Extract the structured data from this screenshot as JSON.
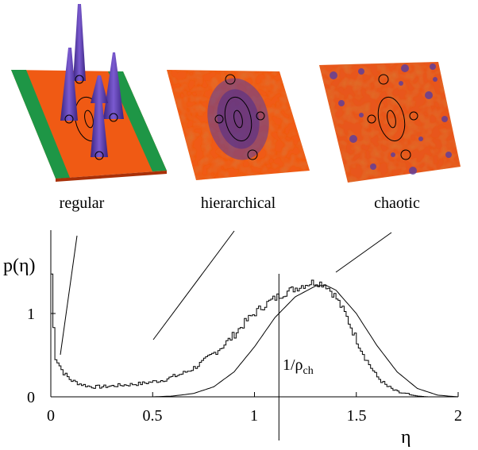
{
  "panels": [
    {
      "label": "regular"
    },
    {
      "label": "hierarchical"
    },
    {
      "label": "chaotic"
    }
  ],
  "colors": {
    "surface": "#f05a14",
    "surface_dark": "#c8360a",
    "peak": "#5a3ca0",
    "border_green": "#1e9646",
    "axis": "#000000"
  },
  "chart_data": {
    "type": "line",
    "ylabel": "p(η)",
    "xlabel": "η",
    "xlim": [
      0,
      2
    ],
    "ylim": [
      0,
      1.5
    ],
    "xticks": [
      0,
      0.5,
      1,
      1.5,
      2
    ],
    "xtick_labels": [
      "0",
      "0.5",
      "1",
      "1.5",
      "2"
    ],
    "yticks": [
      0,
      1
    ],
    "ytick_labels": [
      "0",
      "1"
    ],
    "annotation": {
      "text": "1/ρch",
      "text_main": "1/ρ",
      "text_sub": "ch",
      "x": 1.12
    },
    "series": [
      {
        "style": "step",
        "x": [
          0.0,
          0.02,
          0.04,
          0.06,
          0.08,
          0.1,
          0.15,
          0.2,
          0.25,
          0.3,
          0.35,
          0.4,
          0.45,
          0.5,
          0.55,
          0.6,
          0.65,
          0.7,
          0.75,
          0.8,
          0.85,
          0.9,
          0.95,
          1.0,
          1.05,
          1.1,
          1.15,
          1.2,
          1.25,
          1.3,
          1.35,
          1.4,
          1.45,
          1.5,
          1.55,
          1.6,
          1.65,
          1.7,
          1.75,
          1.8,
          1.85,
          1.9,
          1.95,
          2.0
        ],
        "y": [
          1.8,
          0.5,
          0.4,
          0.3,
          0.25,
          0.2,
          0.15,
          0.12,
          0.12,
          0.13,
          0.14,
          0.15,
          0.16,
          0.18,
          0.2,
          0.24,
          0.28,
          0.34,
          0.42,
          0.52,
          0.62,
          0.74,
          0.88,
          1.0,
          1.1,
          1.18,
          1.25,
          1.3,
          1.35,
          1.38,
          1.35,
          1.2,
          0.98,
          0.7,
          0.45,
          0.25,
          0.13,
          0.06,
          0.03,
          0.01,
          0.0,
          0.0,
          0.0,
          0.0
        ]
      },
      {
        "style": "smooth",
        "x": [
          0.5,
          0.6,
          0.7,
          0.8,
          0.9,
          1.0,
          1.1,
          1.2,
          1.3,
          1.35,
          1.4,
          1.5,
          1.6,
          1.7,
          1.8,
          1.9,
          2.0
        ],
        "y": [
          0.0,
          0.01,
          0.04,
          0.12,
          0.3,
          0.6,
          0.95,
          1.2,
          1.33,
          1.34,
          1.28,
          1.0,
          0.62,
          0.3,
          0.1,
          0.02,
          0.0
        ]
      }
    ]
  }
}
